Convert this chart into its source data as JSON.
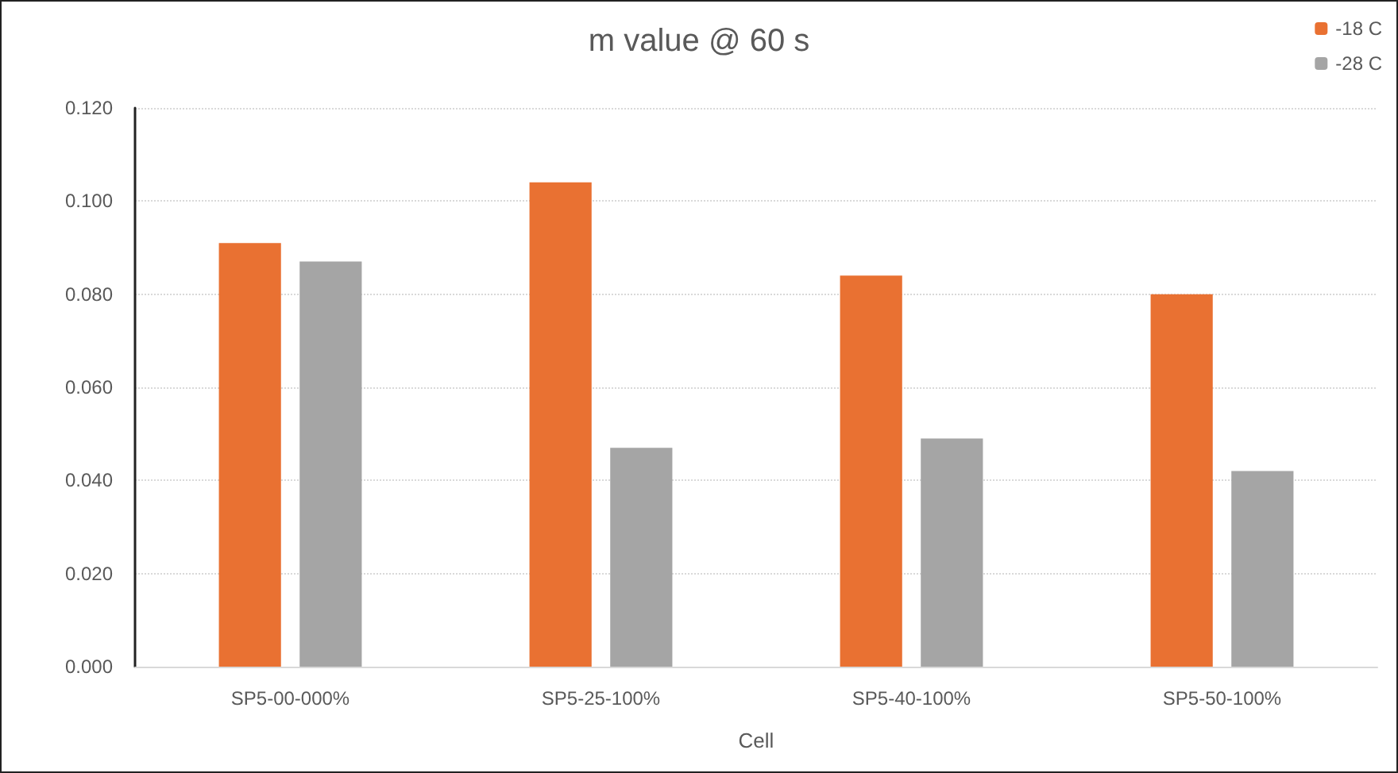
{
  "chart_data": {
    "type": "bar",
    "title": "m value @ 60 s",
    "xlabel": "Cell",
    "categories": [
      "SP5-00-000%",
      "SP5-25-100%",
      "SP5-40-100%",
      "SP5-50-100%"
    ],
    "series": [
      {
        "name": "-18 C",
        "color": "#e97132",
        "values": [
          0.091,
          0.104,
          0.084,
          0.08
        ]
      },
      {
        "name": "-28 C",
        "color": "#a5a5a5",
        "values": [
          0.087,
          0.047,
          0.049,
          0.042
        ]
      }
    ],
    "ylim": [
      0,
      0.12
    ],
    "yticks": [
      {
        "value": 0,
        "label": "0.000"
      },
      {
        "value": 0.02,
        "label": "0.020"
      },
      {
        "value": 0.04,
        "label": "0.040"
      },
      {
        "value": 0.06,
        "label": "0.060"
      },
      {
        "value": 0.08,
        "label": "0.080"
      },
      {
        "value": 0.1,
        "label": "0.100"
      },
      {
        "value": 0.12,
        "label": "0.120"
      }
    ],
    "grid": "y",
    "legend": "top right"
  }
}
